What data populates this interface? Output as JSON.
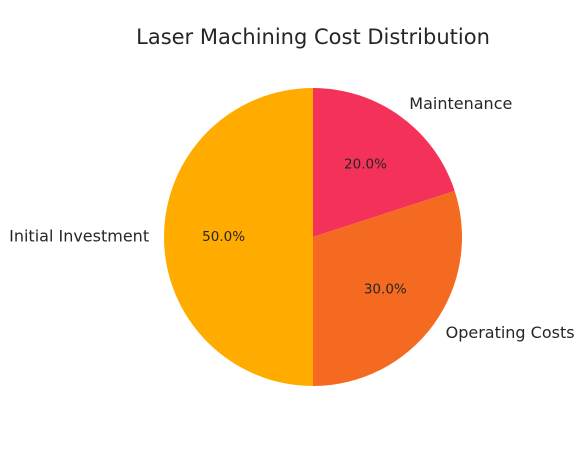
{
  "chart_data": {
    "type": "pie",
    "title": "Laser Machining Cost Distribution",
    "start_angle_deg": 90,
    "direction": "clockwise",
    "legend": "none",
    "slices": [
      {
        "label": "Maintenance",
        "value": 20.0,
        "pct_text": "20.0%",
        "color": "#f43259"
      },
      {
        "label": "Operating Costs",
        "value": 30.0,
        "pct_text": "30.0%",
        "color": "#f46a20"
      },
      {
        "label": "Initial Investment",
        "value": 50.0,
        "pct_text": "50.0%",
        "color": "#ffab00"
      }
    ]
  }
}
